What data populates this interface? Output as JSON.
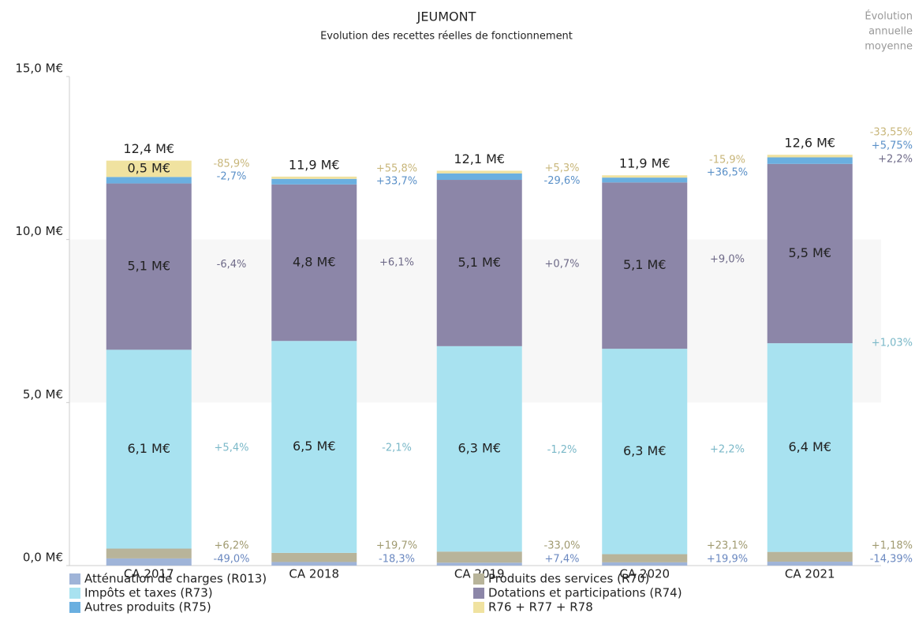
{
  "chart_data": {
    "type": "stacked_bar",
    "title": "JEUMONT",
    "subtitle": "Evolution des recettes réelles de fonctionnement",
    "average_evolution_title": [
      "Évolution",
      "annuelle",
      "moyenne"
    ],
    "categories": [
      "CA 2017",
      "CA 2018",
      "CA 2019",
      "CA 2020",
      "CA 2021"
    ],
    "ylim": [
      0,
      15
    ],
    "yticks": [
      {
        "value": 0,
        "label": "0,0 M€"
      },
      {
        "value": 5,
        "label": "5,0 M€"
      },
      {
        "value": 10,
        "label": "10,0 M€"
      },
      {
        "value": 15,
        "label": "15,0 M€"
      }
    ],
    "grid_bands": true,
    "series": [
      {
        "name": "Atténuation de charges (R013)",
        "color": "#9fb4d8",
        "label_color": "#6a88c0",
        "values": [
          0.22,
          0.11,
          0.09,
          0.1,
          0.12
        ],
        "value_labels": [
          null,
          null,
          null,
          null,
          null
        ],
        "evolution": [
          "-49,0%",
          "-18,3%",
          "+7,4%",
          "+19,9%"
        ],
        "average_evolution": "-14,39%"
      },
      {
        "name": "Produits des services (R70)",
        "color": "#b8b49a",
        "label_color": "#a09a70",
        "values": [
          0.3,
          0.28,
          0.34,
          0.25,
          0.3
        ],
        "value_labels": [
          null,
          null,
          null,
          null,
          null
        ],
        "evolution": [
          "+6,2%",
          "+19,7%",
          "-33,0%",
          "+23,1%"
        ],
        "average_evolution": "+1,18%"
      },
      {
        "name": "Impôts et taxes (R73)",
        "color": "#a8e2f0",
        "label_color": "#7ab8c8",
        "values": [
          6.1,
          6.5,
          6.3,
          6.3,
          6.4
        ],
        "value_labels": [
          "6,1 M€",
          "6,5 M€",
          "6,3 M€",
          "6,3 M€",
          "6,4 M€"
        ],
        "evolution": [
          "+5,4%",
          "-2,1%",
          "-1,2%",
          "+2,2%"
        ],
        "average_evolution": "+1,03%"
      },
      {
        "name": "Dotations et participations (R74)",
        "color": "#8c86a8",
        "label_color": "#6e6a88",
        "values": [
          5.1,
          4.8,
          5.1,
          5.1,
          5.5
        ],
        "value_labels": [
          "5,1 M€",
          "4,8 M€",
          "5,1 M€",
          "5,1 M€",
          "5,5 M€"
        ],
        "evolution": [
          "-6,4%",
          "+6,1%",
          "+0,7%",
          "+9,0%"
        ],
        "average_evolution": "+2,2%"
      },
      {
        "name": "Autres produits (R75)",
        "color": "#6aafe0",
        "label_color": "#5a90c8",
        "values": [
          0.2,
          0.17,
          0.2,
          0.15,
          0.2
        ],
        "value_labels": [
          null,
          null,
          null,
          null,
          null
        ],
        "evolution": [
          "-2,7%",
          "+33,7%",
          "-29,6%",
          "+36,5%"
        ],
        "average_evolution": "+5,75%"
      },
      {
        "name": "R76 + R77 + R78",
        "color": "#f0e2a0",
        "label_color": "#c8b67a",
        "values": [
          0.5,
          0.07,
          0.08,
          0.07,
          0.08
        ],
        "value_labels": [
          "0,5 M€",
          null,
          null,
          null,
          null
        ],
        "evolution": [
          "-85,9%",
          "+55,8%",
          "+5,3%",
          "-15,9%"
        ],
        "average_evolution": "-33,55%"
      }
    ],
    "totals": {
      "values": [
        12.4,
        11.9,
        12.1,
        11.9,
        12.6
      ],
      "value_labels": [
        "12,4 M€",
        "11,9 M€",
        "12,1 M€",
        "11,9 M€",
        "12,6 M€"
      ]
    }
  }
}
